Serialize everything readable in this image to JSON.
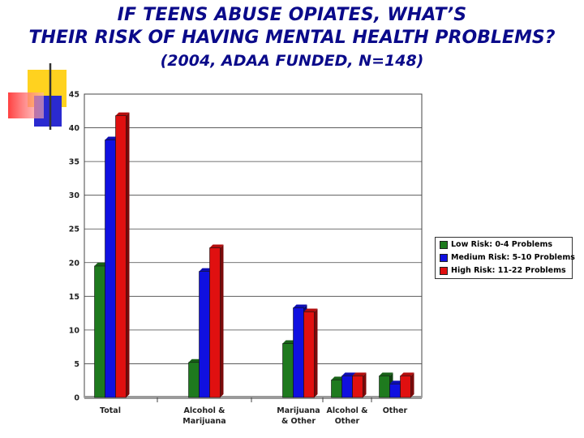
{
  "slide": {
    "title_line1": "IF TEENS ABUSE OPIATES, WHAT’S",
    "title_line2": "THEIR RISK OF HAVING MENTAL HEALTH PROBLEMS?",
    "subtitle": "(2004, ADAA FUNDED, N=148)"
  },
  "colors": {
    "title": "#0a0a8a",
    "low": "#1e7a1e",
    "medium": "#1010e0",
    "high": "#e01010",
    "deco_yellow": "#ffd21f",
    "deco_red": "#ff5050",
    "deco_blue": "#2a2ad0"
  },
  "chart_data": {
    "type": "bar",
    "title": "",
    "xlabel": "",
    "ylabel": "",
    "ylim": [
      0,
      45
    ],
    "yticks": [
      0,
      5,
      10,
      15,
      20,
      25,
      30,
      35,
      40,
      45
    ],
    "grid": true,
    "legend_position": "right",
    "categories": [
      "Total",
      "Alcohol & Marijuana",
      "Marijuana & Other",
      "Alcohol & Other",
      "Other"
    ],
    "category_label_lines": [
      [
        "Total"
      ],
      [
        "Alcohol &",
        "Marijuana"
      ],
      [
        "Marijuana",
        "& Other"
      ],
      [
        "Alcohol &",
        "Other"
      ],
      [
        "Other"
      ]
    ],
    "series": [
      {
        "name": "Low Risk: 0-4 Problems",
        "color": "#1e7a1e",
        "values": [
          19.5,
          5.2,
          8.0,
          2.6,
          3.2
        ]
      },
      {
        "name": "Medium Risk: 5-10 Problems",
        "color": "#1010e0",
        "values": [
          38.2,
          18.7,
          13.3,
          3.2,
          2.0
        ]
      },
      {
        "name": "High Risk: 11-22 Problems",
        "color": "#e01010",
        "values": [
          41.8,
          22.2,
          12.7,
          3.2,
          3.2
        ]
      }
    ]
  }
}
